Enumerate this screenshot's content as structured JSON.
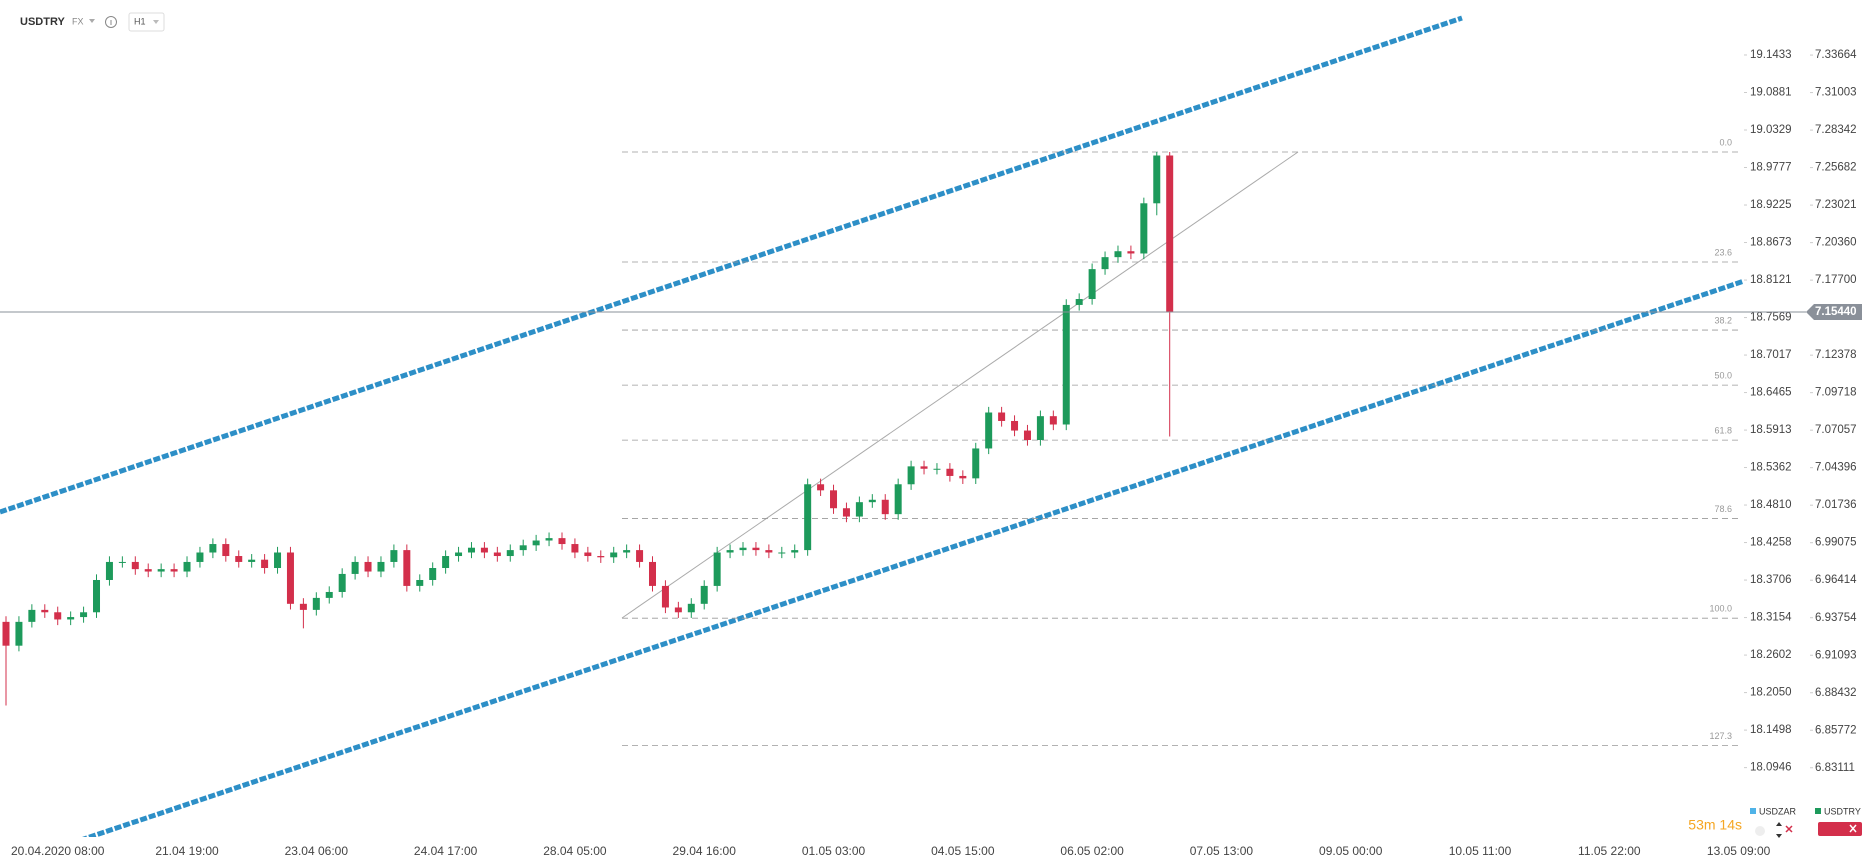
{
  "chart_data": {
    "type": "candlestick",
    "symbol": "USDTRY",
    "market": "FX",
    "interval": "H1",
    "timer": "53m 14s",
    "categories": [
      null,
      null,
      null,
      null,
      "20.04.2020 08:00",
      null,
      null,
      null,
      null,
      null,
      null,
      null,
      null,
      null,
      "21.04 19:00",
      null,
      null,
      null,
      null,
      null,
      null,
      null,
      null,
      null,
      "23.04 06:00",
      null,
      null,
      null,
      null,
      null,
      null,
      null,
      null,
      null,
      "24.04 17:00",
      null,
      null,
      null,
      null,
      null,
      null,
      null,
      null,
      null,
      "28.04 05:00",
      null,
      null,
      null,
      null,
      null,
      null,
      null,
      null,
      null,
      "29.04 16:00",
      null,
      null,
      null,
      null,
      null,
      null,
      null,
      null,
      null,
      "01.05 03:00",
      null,
      null,
      null,
      null,
      null,
      null,
      null,
      null,
      null,
      "04.05 15:00",
      null,
      null,
      null,
      null,
      null,
      null,
      null,
      null,
      null,
      "06.05 02:00",
      null,
      null,
      null,
      null,
      null,
      null,
      null,
      null,
      null,
      "07.05 13:00",
      null,
      null,
      null,
      null,
      null,
      null,
      null,
      null,
      null,
      "09.05 00:00",
      null,
      null,
      null,
      null,
      null,
      null,
      null,
      null,
      null,
      "10.05 11:00",
      null,
      null,
      null,
      null,
      null,
      null,
      null,
      null,
      null,
      "11.05 22:00",
      null,
      null,
      null,
      null,
      null,
      null,
      null,
      null,
      null,
      "13.05 09:00",
      null
    ],
    "series": [
      {
        "name": "USDZAR",
        "axis": "y",
        "color": "#4fb3e8"
      },
      {
        "name": "USDTRY",
        "axis": "y2",
        "color": "#1d9a5b",
        "up_color": "#1d9a5b",
        "down_color": "#d32f4b",
        "open": [
          6.9346,
          6.9177,
          6.9346,
          6.9431,
          6.9414,
          6.9363,
          6.938,
          6.9414,
          6.9643,
          6.9771,
          6.9771,
          6.972,
          6.9703,
          6.972,
          6.9703,
          6.9771,
          6.9838,
          6.9898,
          6.9813,
          6.9771,
          6.9787,
          6.9728,
          6.9838,
          6.9474,
          6.9431,
          6.9516,
          6.9558,
          6.9686,
          6.9771,
          6.9703,
          6.9771,
          6.9855,
          6.9601,
          6.9643,
          6.9728,
          6.9813,
          6.9838,
          6.9872,
          6.9838,
          6.9813,
          6.9855,
          6.9889,
          6.9923,
          6.994,
          6.9898,
          6.9838,
          6.9813,
          6.9804,
          6.9838,
          6.9855,
          6.9771,
          6.9601,
          6.9448,
          6.9414,
          6.9474,
          6.9601,
          6.9838,
          6.9855,
          6.9872,
          6.9855,
          6.9838,
          6.9838,
          6.9855,
          7.0322,
          7.0279,
          7.0152,
          7.0093,
          7.0195,
          7.0212,
          7.011,
          7.0322,
          7.0449,
          7.0432,
          7.0432,
          7.0381,
          7.0364,
          7.0576,
          7.0831,
          7.0771,
          7.0703,
          7.0636,
          7.0805,
          7.0746,
          7.1594,
          7.1636,
          7.1848,
          7.1933,
          7.1975,
          7.1959,
          7.2315,
          7.2654,
          null,
          null,
          null,
          null,
          null,
          null,
          null,
          null,
          null,
          null,
          null,
          null,
          null,
          null,
          null,
          null,
          null,
          null,
          null,
          null,
          null,
          null,
          null,
          null,
          null,
          null,
          null,
          null,
          null,
          null,
          null,
          null,
          null,
          null,
          null,
          null,
          null,
          null,
          null,
          null,
          null,
          null,
          null,
          null,
          null
        ],
        "high": [
          6.9386,
          6.9386,
          6.9471,
          6.9471,
          6.9454,
          6.942,
          6.9454,
          6.9683,
          6.9811,
          6.9811,
          6.9811,
          6.976,
          6.976,
          6.976,
          6.9811,
          6.9878,
          6.9938,
          6.9938,
          6.9853,
          6.9827,
          6.9827,
          6.9878,
          6.9878,
          6.9514,
          6.9556,
          6.9598,
          6.9726,
          6.9811,
          6.9811,
          6.9811,
          6.9895,
          6.9895,
          6.9683,
          6.9768,
          6.9853,
          6.9878,
          6.9912,
          6.9912,
          6.9878,
          6.9895,
          6.9929,
          6.9963,
          6.998,
          6.998,
          6.9938,
          6.9878,
          6.9853,
          6.9878,
          6.9895,
          6.9895,
          6.9811,
          6.9641,
          6.9488,
          6.9514,
          6.9641,
          6.9878,
          6.9895,
          6.9912,
          6.9912,
          6.9895,
          6.9878,
          6.9895,
          7.0362,
          7.0362,
          7.0319,
          7.0192,
          7.0235,
          7.0252,
          7.0252,
          7.0362,
          7.0489,
          7.0489,
          7.0472,
          7.0472,
          7.0421,
          7.0616,
          7.0871,
          7.0871,
          7.0811,
          7.0743,
          7.0845,
          7.0845,
          7.1634,
          7.1676,
          7.1888,
          7.1973,
          7.2015,
          7.2015,
          7.2355,
          7.2679,
          7.2679,
          null,
          null,
          null,
          null,
          null,
          null,
          null,
          null,
          null,
          null,
          null,
          null,
          null,
          null,
          null,
          null,
          null,
          null,
          null,
          null,
          null,
          null,
          null,
          null,
          null,
          null,
          null,
          null,
          null,
          null,
          null,
          null,
          null,
          null,
          null,
          null,
          null,
          null,
          null,
          null,
          null,
          null,
          null,
          null,
          null
        ],
        "low": [
          6.8753,
          6.9137,
          6.9306,
          6.9374,
          6.9323,
          6.9323,
          6.934,
          6.9374,
          6.9603,
          6.9731,
          6.968,
          6.9663,
          6.9663,
          6.9663,
          6.9663,
          6.9731,
          6.9798,
          6.9773,
          6.9731,
          6.9731,
          6.9688,
          6.9688,
          6.9434,
          6.93,
          6.9391,
          6.9476,
          6.9518,
          6.9646,
          6.9663,
          6.9663,
          6.9731,
          6.9561,
          6.9561,
          6.9603,
          6.9688,
          6.9773,
          6.9798,
          6.9798,
          6.9773,
          6.9773,
          6.9815,
          6.9849,
          6.9883,
          6.9858,
          6.9798,
          6.9773,
          6.9764,
          6.9764,
          6.9798,
          6.9731,
          6.9561,
          6.9408,
          6.9374,
          6.9374,
          6.9434,
          6.9561,
          6.9798,
          6.9815,
          6.9815,
          6.9798,
          6.9798,
          6.9798,
          6.9815,
          7.0239,
          7.0112,
          7.0053,
          7.0053,
          7.0155,
          7.007,
          7.007,
          7.0282,
          7.0392,
          7.0392,
          7.0341,
          7.0324,
          7.0324,
          7.0536,
          7.0731,
          7.0663,
          7.0596,
          7.0596,
          7.0706,
          7.0706,
          7.1554,
          7.1596,
          7.1808,
          7.1893,
          7.1919,
          7.1919,
          7.223,
          7.0661,
          null,
          null,
          null,
          null,
          null,
          null,
          null,
          null,
          null,
          null,
          null,
          null,
          null,
          null,
          null,
          null,
          null,
          null,
          null,
          null,
          null,
          null,
          null,
          null,
          null,
          null,
          null,
          null,
          null,
          null,
          null,
          null,
          null,
          null,
          null,
          null,
          null,
          null,
          null,
          null,
          null,
          null,
          null,
          null,
          null
        ],
        "close": [
          6.9177,
          6.9346,
          6.9431,
          6.9414,
          6.9363,
          6.938,
          6.9414,
          6.9643,
          6.9771,
          6.9771,
          6.972,
          6.9703,
          6.972,
          6.9703,
          6.9771,
          6.9838,
          6.9898,
          6.9813,
          6.9771,
          6.9787,
          6.9728,
          6.9838,
          6.9474,
          6.9431,
          6.9516,
          6.9558,
          6.9686,
          6.9771,
          6.9703,
          6.9771,
          6.9855,
          6.9601,
          6.9643,
          6.9728,
          6.9813,
          6.9838,
          6.9872,
          6.9838,
          6.9813,
          6.9855,
          6.9889,
          6.9923,
          6.994,
          6.9898,
          6.9838,
          6.9813,
          6.9804,
          6.9838,
          6.9855,
          6.9771,
          6.9601,
          6.9448,
          6.9414,
          6.9474,
          6.9601,
          6.9838,
          6.9855,
          6.9872,
          6.9855,
          6.9838,
          6.9838,
          6.9855,
          7.0322,
          7.0279,
          7.0152,
          7.0093,
          7.0195,
          7.0212,
          7.011,
          7.0322,
          7.0449,
          7.0432,
          7.0432,
          7.0381,
          7.0364,
          7.0576,
          7.0831,
          7.0771,
          7.0703,
          7.0636,
          7.0805,
          7.0746,
          7.1594,
          7.1636,
          7.1848,
          7.1933,
          7.1975,
          7.1959,
          7.2315,
          7.2654,
          7.1544,
          null,
          null,
          null,
          null,
          null,
          null,
          null,
          null,
          null,
          null,
          null,
          null,
          null,
          null,
          null,
          null,
          null,
          null,
          null,
          null,
          null,
          null,
          null,
          null,
          null,
          null,
          null,
          null,
          null,
          null,
          null,
          null,
          null,
          null,
          null,
          null,
          null,
          null,
          null,
          null,
          null,
          null,
          null,
          null,
          null
        ]
      }
    ],
    "ylim": [
      17.9925,
      19.2242
    ],
    "yticks": [
      19.1433,
      19.0881,
      19.0329,
      18.9777,
      18.9225,
      18.8673,
      18.8121,
      18.7569,
      18.7017,
      18.6465,
      18.5913,
      18.5362,
      {
        "value": 18.481,
        "label": "18.4810"
      },
      18.4258,
      18.3706,
      18.3154,
      18.2602,
      {
        "value": 18.205,
        "label": "18.2050"
      },
      18.1498,
      18.0946
    ],
    "y2lim": [
      6.782,
      7.3757
    ],
    "y2ticks": [
      7.33664,
      7.31003,
      7.28342,
      7.25682,
      7.23021,
      {
        "value": 7.2036,
        "label": "7.20360"
      },
      {
        "value": 7.177,
        "label": "7.17700"
      },
      7.12378,
      7.09718,
      7.07057,
      7.04396,
      7.01736,
      6.99075,
      6.96414,
      6.93754,
      6.91093,
      6.88432,
      6.85772,
      6.83111
    ],
    "last_price": {
      "value": 7.1544,
      "label": "7.15440"
    },
    "fib": {
      "high": 7.2679,
      "low": 6.9372,
      "levels": [
        {
          "value": 0,
          "label": "0.0"
        },
        23.6,
        38.2,
        {
          "value": 50,
          "label": "50.0"
        },
        61.8,
        78.6,
        {
          "value": 100,
          "label": "100.0"
        },
        127.3
      ]
    }
  }
}
